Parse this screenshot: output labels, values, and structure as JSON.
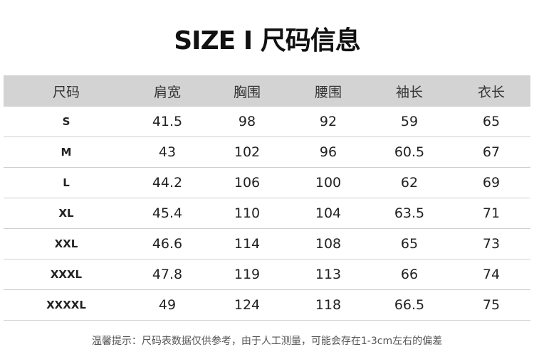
{
  "title": "SIZE Ⅰ 尺码信息",
  "table": {
    "headers": [
      "尺码",
      "肩宽",
      "胸围",
      "腰围",
      "袖长",
      "衣长"
    ],
    "rows": [
      [
        "S",
        "41.5",
        "98",
        "92",
        "59",
        "65"
      ],
      [
        "M",
        "43",
        "102",
        "96",
        "60.5",
        "67"
      ],
      [
        "L",
        "44.2",
        "106",
        "100",
        "62",
        "69"
      ],
      [
        "XL",
        "45.4",
        "110",
        "104",
        "63.5",
        "71"
      ],
      [
        "XXL",
        "46.6",
        "114",
        "108",
        "65",
        "73"
      ],
      [
        "XXXL",
        "47.8",
        "119",
        "113",
        "66",
        "74"
      ],
      [
        "XXXXL",
        "49",
        "124",
        "118",
        "66.5",
        "75"
      ]
    ]
  },
  "note": "温馨提示：尺码表数据仅供参考，由于人工测量，可能会存在1-3cm左右的偏差"
}
